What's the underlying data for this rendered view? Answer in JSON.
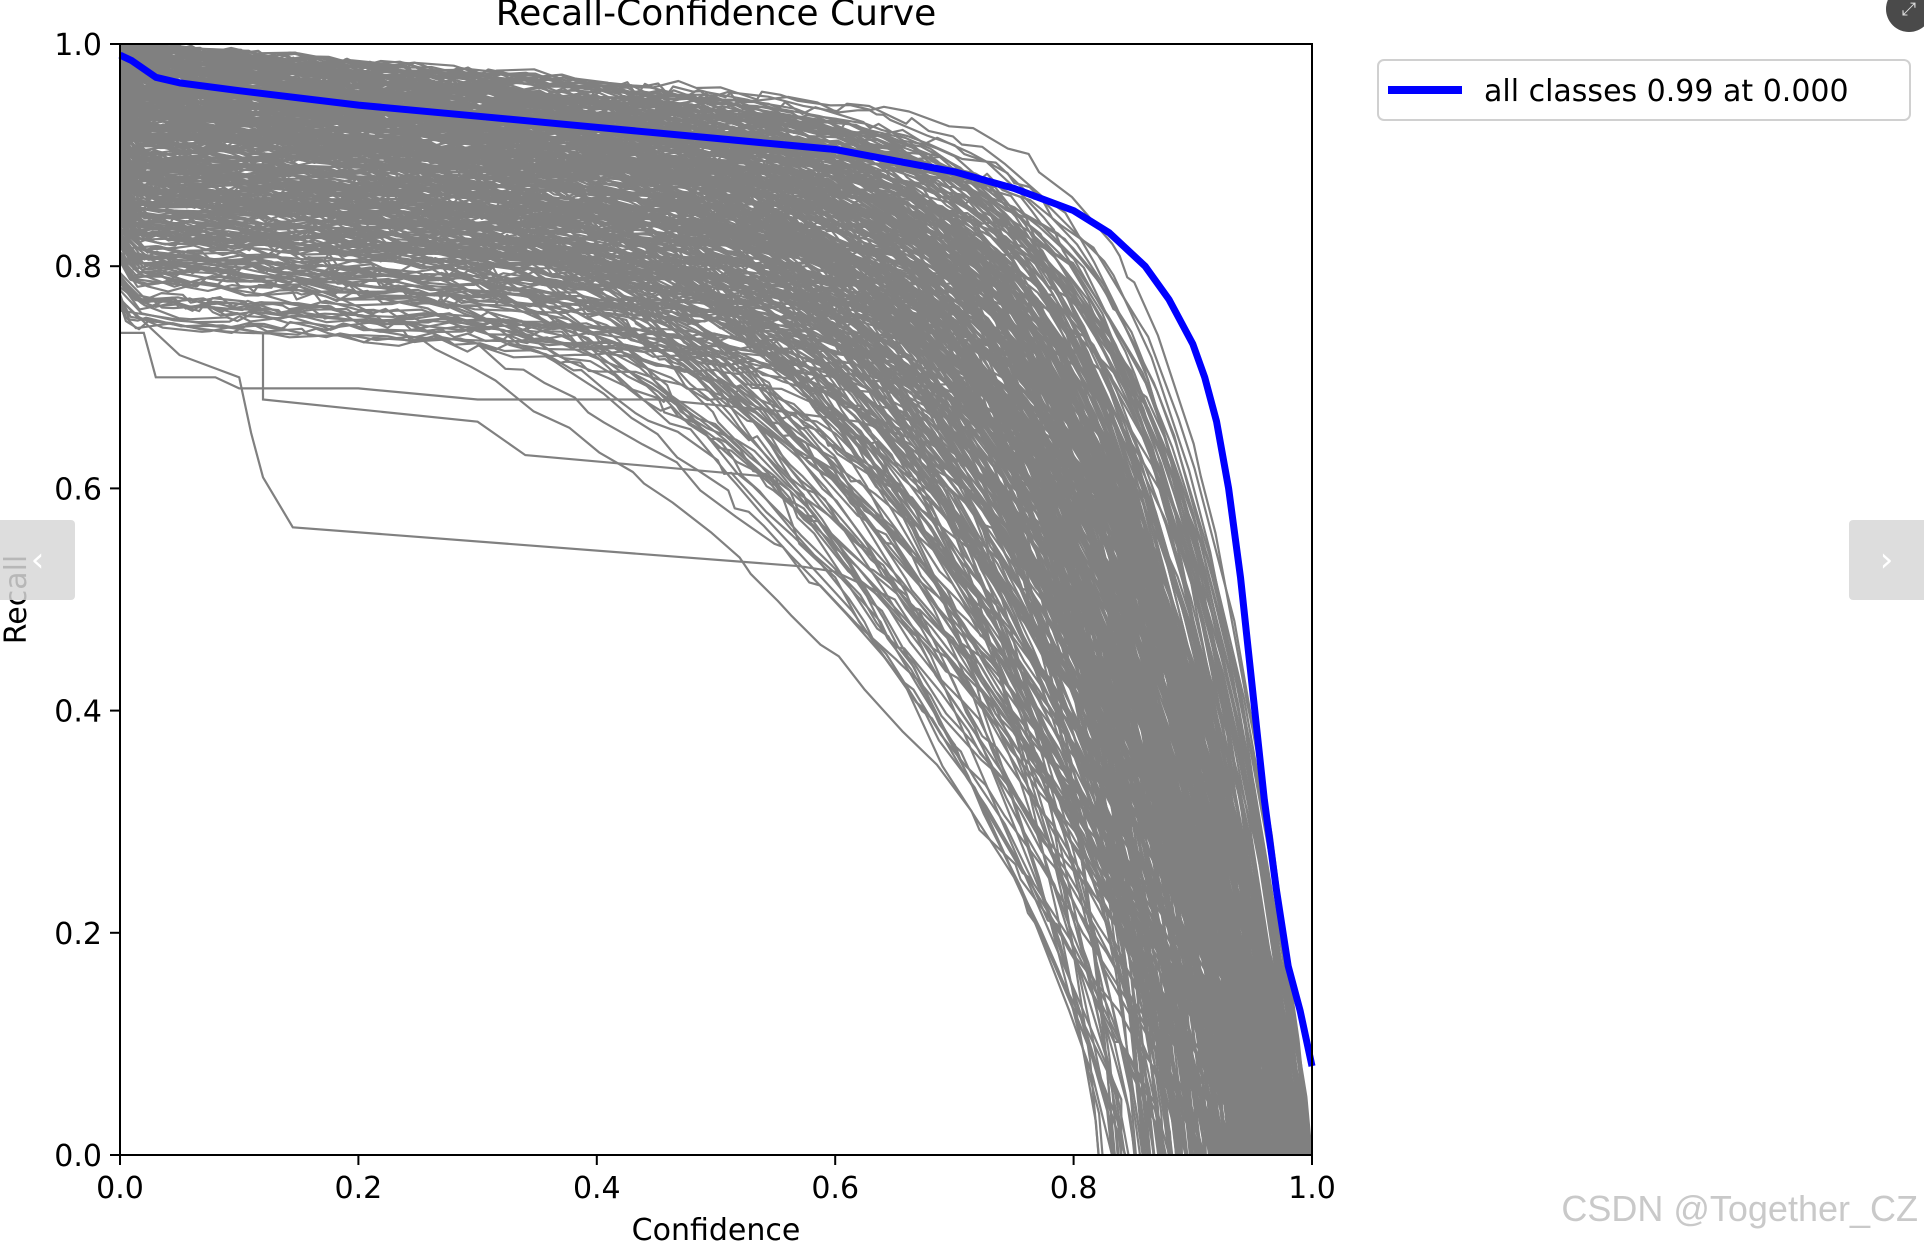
{
  "chart_data": {
    "type": "line",
    "title": "Recall-Confidence Curve",
    "xlabel": "Confidence",
    "ylabel": "Recall",
    "xlim": [
      0.0,
      1.0
    ],
    "ylim": [
      0.0,
      1.0
    ],
    "xticks": [
      "0.0",
      "0.2",
      "0.4",
      "0.6",
      "0.8",
      "1.0"
    ],
    "yticks": [
      "0.0",
      "0.2",
      "0.4",
      "0.6",
      "0.8",
      "1.0"
    ],
    "grid": false,
    "legend_position": "outside-top-right",
    "colors": {
      "per_class": "#808080",
      "all_classes": "#0000ff"
    },
    "series": [
      {
        "name": "all classes 0.99 at 0.000",
        "x": [
          0.0,
          0.01,
          0.03,
          0.05,
          0.1,
          0.2,
          0.3,
          0.4,
          0.5,
          0.55,
          0.6,
          0.65,
          0.7,
          0.75,
          0.8,
          0.83,
          0.86,
          0.88,
          0.9,
          0.91,
          0.92,
          0.93,
          0.94,
          0.95,
          0.96,
          0.97,
          0.98,
          0.99,
          1.0
        ],
        "y": [
          0.99,
          0.985,
          0.97,
          0.965,
          0.958,
          0.945,
          0.935,
          0.925,
          0.915,
          0.91,
          0.905,
          0.895,
          0.885,
          0.87,
          0.85,
          0.83,
          0.8,
          0.77,
          0.73,
          0.7,
          0.66,
          0.6,
          0.52,
          0.42,
          0.32,
          0.24,
          0.17,
          0.13,
          0.08
        ]
      }
    ],
    "per_class_curves": [
      {
        "x": [
          0.0,
          0.05,
          0.1,
          0.11,
          0.12,
          0.145,
          0.57,
          0.6,
          0.65,
          0.68,
          0.7,
          0.74,
          0.78,
          0.84,
          0.84
        ],
        "y": [
          0.77,
          0.72,
          0.7,
          0.65,
          0.61,
          0.565,
          0.53,
          0.525,
          0.5,
          0.45,
          0.4,
          0.3,
          0.2,
          0.05,
          0.0
        ]
      },
      {
        "x": [
          0.0,
          0.12,
          0.12,
          0.3,
          0.34,
          0.55,
          0.56,
          0.57,
          0.6,
          0.62,
          0.66,
          0.69,
          0.72,
          0.75,
          0.78,
          0.84
        ],
        "y": [
          0.76,
          0.74,
          0.68,
          0.66,
          0.63,
          0.61,
          0.58,
          0.55,
          0.52,
          0.48,
          0.42,
          0.35,
          0.3,
          0.25,
          0.18,
          0.05
        ]
      },
      {
        "x": [
          0.0,
          0.02,
          0.03,
          0.08,
          0.1,
          0.2,
          0.3,
          0.45,
          0.55,
          0.62,
          0.68,
          0.74,
          0.78,
          0.8,
          0.83,
          0.85,
          0.87,
          0.89,
          0.9,
          0.91
        ],
        "y": [
          0.74,
          0.74,
          0.7,
          0.7,
          0.69,
          0.69,
          0.68,
          0.68,
          0.67,
          0.66,
          0.64,
          0.6,
          0.56,
          0.52,
          0.45,
          0.4,
          0.35,
          0.3,
          0.25,
          0.2
        ]
      }
    ]
  },
  "ui": {
    "prev_icon": "‹",
    "next_icon": "›",
    "expand_icon": "⤢",
    "watermark": "CSDN @Together_CZ"
  }
}
